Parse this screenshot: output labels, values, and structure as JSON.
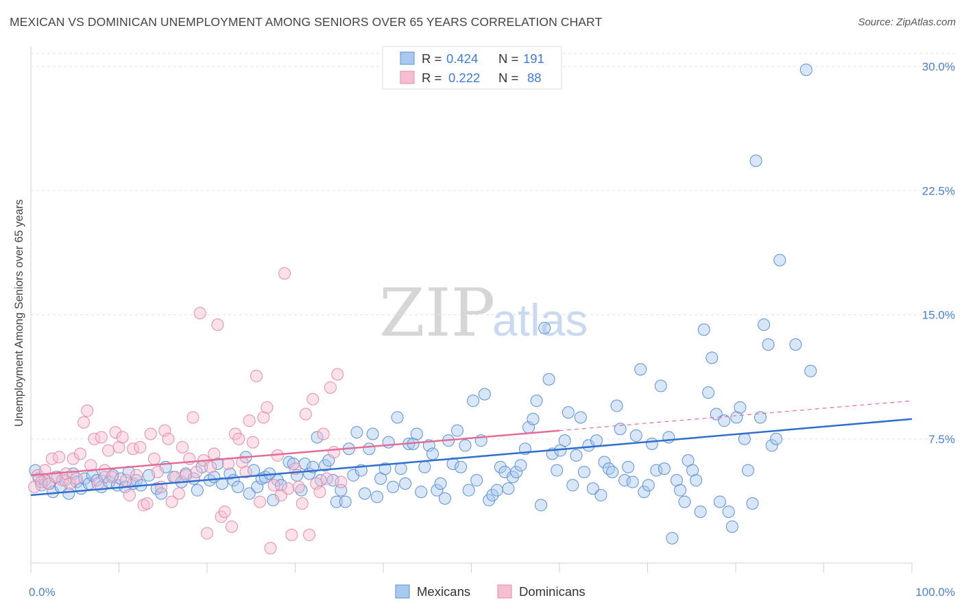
{
  "header": {
    "title": "MEXICAN VS DOMINICAN UNEMPLOYMENT AMONG SENIORS OVER 65 YEARS CORRELATION CHART",
    "source": "Source: ZipAtlas.com"
  },
  "watermark": {
    "zip": "ZIP",
    "atlas": "atlas"
  },
  "colors": {
    "mexicans_fill": "#a9c8f0",
    "mexicans_stroke": "#5b8fd6",
    "mexicans_line": "#2f6ecf",
    "dominicans_fill": "#f6bfd0",
    "dominicans_stroke": "#e58aa8",
    "dominicans_line": "#e56b95"
  },
  "legend": {
    "rows": [
      {
        "r_label": "R = ",
        "r_value": "0.424",
        "n_label": "N = ",
        "n_value": "191"
      },
      {
        "r_label": "R = ",
        "r_value": "0.222",
        "n_label": "N = ",
        "n_value": "88"
      }
    ]
  },
  "chart_data": {
    "type": "scatter",
    "title": "MEXICAN VS DOMINICAN UNEMPLOYMENT AMONG SENIORS OVER 65 YEARS CORRELATION CHART",
    "xlabel": "",
    "ylabel": "Unemployment Among Seniors over 65 years",
    "xlim": [
      0,
      100
    ],
    "ylim": [
      0,
      30
    ],
    "x_tick_labels": [
      "0.0%",
      "100.0%"
    ],
    "y_ticks": [
      7.5,
      15.0,
      22.5,
      30.0
    ],
    "y_tick_labels": [
      "7.5%",
      "15.0%",
      "22.5%",
      "30.0%"
    ],
    "grid": "horizontal dashed",
    "legend_placement": "top-center and bottom",
    "series": [
      {
        "name": "Mexicans",
        "r": 0.424,
        "n": 191,
        "trend": {
          "x": [
            0,
            100
          ],
          "y": [
            4.1,
            8.7
          ]
        },
        "points": [
          [
            0.5,
            5.6
          ],
          [
            0.9,
            5.1
          ],
          [
            1.2,
            4.7
          ],
          [
            1.6,
            5.0
          ],
          [
            2.1,
            4.8
          ],
          [
            2.5,
            4.3
          ],
          [
            3.0,
            5.2
          ],
          [
            3.4,
            4.6
          ],
          [
            3.9,
            5.0
          ],
          [
            4.3,
            4.2
          ],
          [
            4.8,
            5.4
          ],
          [
            5.2,
            4.9
          ],
          [
            5.7,
            4.5
          ],
          [
            6.1,
            5.1
          ],
          [
            6.6,
            4.8
          ],
          [
            7.0,
            5.3
          ],
          [
            7.5,
            5.0
          ],
          [
            8.0,
            4.6
          ],
          [
            8.4,
            5.2
          ],
          [
            8.9,
            4.9
          ],
          [
            9.3,
            5.3
          ],
          [
            9.8,
            4.7
          ],
          [
            10.2,
            5.1
          ],
          [
            10.7,
            4.6
          ],
          [
            11.1,
            5.5
          ],
          [
            11.6,
            4.8
          ],
          [
            12.0,
            5.0
          ],
          [
            12.5,
            4.7
          ],
          [
            13.4,
            5.3
          ],
          [
            14.3,
            4.5
          ],
          [
            14.8,
            4.2
          ],
          [
            15.3,
            5.8
          ],
          [
            16.2,
            5.2
          ],
          [
            17.1,
            4.9
          ],
          [
            17.6,
            5.4
          ],
          [
            18.5,
            5.1
          ],
          [
            18.9,
            4.4
          ],
          [
            19.4,
            5.8
          ],
          [
            20.3,
            5.0
          ],
          [
            20.8,
            5.2
          ],
          [
            21.2,
            6.0
          ],
          [
            21.7,
            4.8
          ],
          [
            22.6,
            5.4
          ],
          [
            23.0,
            5.0
          ],
          [
            23.5,
            4.6
          ],
          [
            24.4,
            6.4
          ],
          [
            24.8,
            4.2
          ],
          [
            25.3,
            5.6
          ],
          [
            25.7,
            4.6
          ],
          [
            26.2,
            5.1
          ],
          [
            26.6,
            5.2
          ],
          [
            27.1,
            5.4
          ],
          [
            27.5,
            3.8
          ],
          [
            28.0,
            5.0
          ],
          [
            28.4,
            4.7
          ],
          [
            29.3,
            6.1
          ],
          [
            29.8,
            6.0
          ],
          [
            30.2,
            5.3
          ],
          [
            30.7,
            4.4
          ],
          [
            31.1,
            6.0
          ],
          [
            31.6,
            5.4
          ],
          [
            32.0,
            5.8
          ],
          [
            32.5,
            7.6
          ],
          [
            32.9,
            5.0
          ],
          [
            33.4,
            5.9
          ],
          [
            33.8,
            6.2
          ],
          [
            34.3,
            5.0
          ],
          [
            34.7,
            3.7
          ],
          [
            35.2,
            4.4
          ],
          [
            35.7,
            3.7
          ],
          [
            36.1,
            6.9
          ],
          [
            36.6,
            5.3
          ],
          [
            37.0,
            7.9
          ],
          [
            37.5,
            5.6
          ],
          [
            37.9,
            4.2
          ],
          [
            38.4,
            6.9
          ],
          [
            38.8,
            7.8
          ],
          [
            39.3,
            4.0
          ],
          [
            39.7,
            5.1
          ],
          [
            40.2,
            5.7
          ],
          [
            40.6,
            7.3
          ],
          [
            41.1,
            4.6
          ],
          [
            41.6,
            8.8
          ],
          [
            42.0,
            5.7
          ],
          [
            42.5,
            4.8
          ],
          [
            42.9,
            7.2
          ],
          [
            43.4,
            7.2
          ],
          [
            43.8,
            7.8
          ],
          [
            44.3,
            4.3
          ],
          [
            44.7,
            5.8
          ],
          [
            45.2,
            7.1
          ],
          [
            45.6,
            6.6
          ],
          [
            46.1,
            4.4
          ],
          [
            46.5,
            4.8
          ],
          [
            47.0,
            3.9
          ],
          [
            47.4,
            7.4
          ],
          [
            47.9,
            6.0
          ],
          [
            48.4,
            8.0
          ],
          [
            48.8,
            5.8
          ],
          [
            49.3,
            7.1
          ],
          [
            49.7,
            4.4
          ],
          [
            50.2,
            9.8
          ],
          [
            50.6,
            5.0
          ],
          [
            51.1,
            7.4
          ],
          [
            51.5,
            10.2
          ],
          [
            52.0,
            3.8
          ],
          [
            52.4,
            4.1
          ],
          [
            52.9,
            4.4
          ],
          [
            53.3,
            5.8
          ],
          [
            53.8,
            5.5
          ],
          [
            54.2,
            4.5
          ],
          [
            54.7,
            5.2
          ],
          [
            55.1,
            5.5
          ],
          [
            55.6,
            5.9
          ],
          [
            56.1,
            6.9
          ],
          [
            56.5,
            8.2
          ],
          [
            57.0,
            8.7
          ],
          [
            57.4,
            9.8
          ],
          [
            57.9,
            3.5
          ],
          [
            58.3,
            14.2
          ],
          [
            58.8,
            11.1
          ],
          [
            59.2,
            6.6
          ],
          [
            59.7,
            5.6
          ],
          [
            60.1,
            6.8
          ],
          [
            60.6,
            7.4
          ],
          [
            61.0,
            9.1
          ],
          [
            61.5,
            4.7
          ],
          [
            61.9,
            6.5
          ],
          [
            62.4,
            8.8
          ],
          [
            62.8,
            5.5
          ],
          [
            63.3,
            7.1
          ],
          [
            63.8,
            4.5
          ],
          [
            64.2,
            7.4
          ],
          [
            64.7,
            4.1
          ],
          [
            65.1,
            6.1
          ],
          [
            65.6,
            5.7
          ],
          [
            66.0,
            5.5
          ],
          [
            66.5,
            9.5
          ],
          [
            66.9,
            8.1
          ],
          [
            67.4,
            5.0
          ],
          [
            67.8,
            5.8
          ],
          [
            68.3,
            4.9
          ],
          [
            68.7,
            7.7
          ],
          [
            69.2,
            11.7
          ],
          [
            69.6,
            4.3
          ],
          [
            70.1,
            4.7
          ],
          [
            70.5,
            7.2
          ],
          [
            71.0,
            5.6
          ],
          [
            71.5,
            10.7
          ],
          [
            71.9,
            5.7
          ],
          [
            72.4,
            7.6
          ],
          [
            72.8,
            1.5
          ],
          [
            73.3,
            5.0
          ],
          [
            73.7,
            4.4
          ],
          [
            74.2,
            3.7
          ],
          [
            74.6,
            6.2
          ],
          [
            75.1,
            5.6
          ],
          [
            75.5,
            5.0
          ],
          [
            76.0,
            3.1
          ],
          [
            76.4,
            14.1
          ],
          [
            76.9,
            10.3
          ],
          [
            77.3,
            12.4
          ],
          [
            77.8,
            9.0
          ],
          [
            78.2,
            3.7
          ],
          [
            78.7,
            8.6
          ],
          [
            79.2,
            3.1
          ],
          [
            79.6,
            2.2
          ],
          [
            80.1,
            8.8
          ],
          [
            80.5,
            9.4
          ],
          [
            81.0,
            7.5
          ],
          [
            81.4,
            5.6
          ],
          [
            81.9,
            3.6
          ],
          [
            82.3,
            24.3
          ],
          [
            82.8,
            8.8
          ],
          [
            83.2,
            14.4
          ],
          [
            83.7,
            13.2
          ],
          [
            84.1,
            7.1
          ],
          [
            84.6,
            7.5
          ],
          [
            85.0,
            18.3
          ],
          [
            86.8,
            13.2
          ],
          [
            88.0,
            29.8
          ],
          [
            88.5,
            11.6
          ]
        ]
      },
      {
        "name": "Dominicans",
        "r": 0.222,
        "n": 88,
        "trend": {
          "x": [
            0,
            60
          ],
          "y": [
            5.3,
            8.0
          ]
        },
        "trend_dashed": {
          "x": [
            60,
            100
          ],
          "y": [
            8.0,
            9.8
          ]
        },
        "points": [
          [
            0.4,
            4.6
          ],
          [
            0.8,
            5.3
          ],
          [
            1.2,
            4.9
          ],
          [
            1.6,
            5.6
          ],
          [
            2.0,
            4.8
          ],
          [
            2.4,
            6.3
          ],
          [
            2.8,
            5.2
          ],
          [
            3.2,
            6.4
          ],
          [
            3.6,
            5.0
          ],
          [
            4.0,
            5.4
          ],
          [
            4.4,
            4.8
          ],
          [
            4.8,
            6.3
          ],
          [
            5.2,
            5.1
          ],
          [
            5.6,
            6.6
          ],
          [
            6.0,
            8.5
          ],
          [
            6.4,
            9.2
          ],
          [
            6.8,
            5.9
          ],
          [
            7.2,
            7.5
          ],
          [
            7.6,
            4.8
          ],
          [
            8.0,
            7.6
          ],
          [
            8.4,
            5.6
          ],
          [
            8.8,
            6.8
          ],
          [
            9.2,
            5.2
          ],
          [
            9.6,
            7.9
          ],
          [
            10.0,
            7.0
          ],
          [
            10.4,
            7.6
          ],
          [
            10.8,
            5.0
          ],
          [
            11.2,
            4.1
          ],
          [
            11.6,
            6.9
          ],
          [
            12.0,
            5.3
          ],
          [
            12.4,
            7.0
          ],
          [
            12.8,
            3.5
          ],
          [
            13.2,
            3.6
          ],
          [
            13.6,
            7.8
          ],
          [
            14.0,
            6.3
          ],
          [
            14.4,
            5.5
          ],
          [
            14.8,
            4.6
          ],
          [
            15.2,
            8.0
          ],
          [
            15.6,
            7.5
          ],
          [
            16.0,
            3.7
          ],
          [
            16.4,
            5.2
          ],
          [
            16.8,
            4.2
          ],
          [
            17.2,
            7.0
          ],
          [
            17.6,
            5.3
          ],
          [
            18.0,
            6.3
          ],
          [
            18.4,
            8.8
          ],
          [
            18.8,
            5.5
          ],
          [
            19.2,
            15.1
          ],
          [
            19.6,
            6.2
          ],
          [
            20.0,
            1.8
          ],
          [
            20.4,
            5.8
          ],
          [
            20.8,
            6.6
          ],
          [
            21.2,
            14.4
          ],
          [
            21.6,
            2.8
          ],
          [
            22.0,
            3.1
          ],
          [
            22.4,
            6.0
          ],
          [
            22.8,
            2.2
          ],
          [
            23.2,
            7.8
          ],
          [
            23.6,
            7.5
          ],
          [
            24.0,
            6.1
          ],
          [
            24.4,
            5.5
          ],
          [
            24.8,
            8.6
          ],
          [
            25.2,
            7.3
          ],
          [
            25.6,
            11.3
          ],
          [
            26.0,
            3.7
          ],
          [
            26.4,
            8.8
          ],
          [
            26.8,
            9.4
          ],
          [
            27.2,
            0.9
          ],
          [
            27.6,
            4.7
          ],
          [
            28.0,
            6.5
          ],
          [
            28.4,
            4.1
          ],
          [
            28.8,
            17.5
          ],
          [
            29.2,
            4.5
          ],
          [
            29.6,
            1.7
          ],
          [
            30.0,
            5.7
          ],
          [
            30.4,
            4.6
          ],
          [
            30.8,
            3.6
          ],
          [
            31.2,
            9.0
          ],
          [
            31.6,
            1.7
          ],
          [
            32.0,
            9.9
          ],
          [
            32.4,
            4.8
          ],
          [
            32.8,
            4.3
          ],
          [
            33.2,
            7.8
          ],
          [
            33.6,
            5.1
          ],
          [
            34.0,
            10.6
          ],
          [
            34.4,
            6.7
          ],
          [
            34.8,
            11.4
          ],
          [
            35.2,
            4.9
          ]
        ]
      }
    ]
  },
  "bottom_legend": [
    "Mexicans",
    "Dominicans"
  ]
}
